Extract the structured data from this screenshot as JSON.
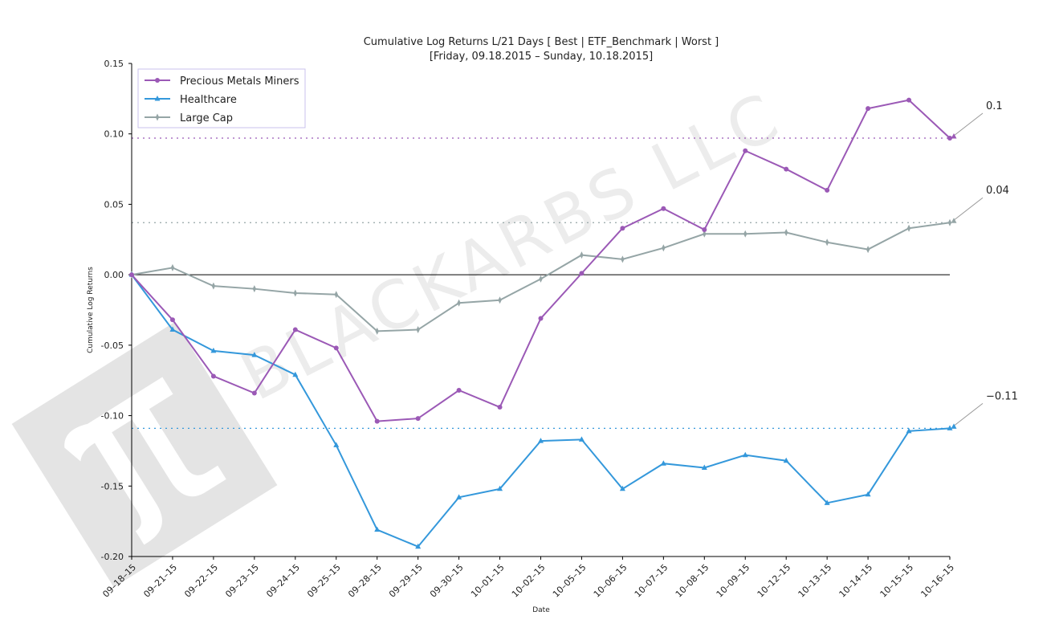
{
  "chart_data": {
    "type": "line",
    "title": "Cumulative Log Returns L/21 Days [ Best | ETF_Benchmark | Worst ]",
    "subtitle": "[Friday, 09.18.2015 – Sunday, 10.18.2015]",
    "xlabel": "Date",
    "ylabel": "Cumulative Log Returns",
    "ylim": [
      -0.2,
      0.15
    ],
    "yticks": [
      "0.15",
      "0.10",
      "0.05",
      "0.00",
      "-0.05",
      "-0.10",
      "-0.15",
      "-0.20"
    ],
    "x": [
      "09–18–15",
      "09–21–15",
      "09–22–15",
      "09–23–15",
      "09–24–15",
      "09–25–15",
      "09–28–15",
      "09–29–15",
      "09–30–15",
      "10–01–15",
      "10–02–15",
      "10–05–15",
      "10–06–15",
      "10–07–15",
      "10–08–15",
      "10–09–15",
      "10–12–15",
      "10–13–15",
      "10–14–15",
      "10–15–15",
      "10–16–15"
    ],
    "series": [
      {
        "name": "Precious Metals Miners",
        "color": "#9b59b6",
        "marker": "circle",
        "values": [
          0.0,
          -0.032,
          -0.072,
          -0.084,
          -0.039,
          -0.052,
          -0.104,
          -0.102,
          -0.082,
          -0.094,
          -0.031,
          0.001,
          0.033,
          0.047,
          0.032,
          0.088,
          0.075,
          0.06,
          0.118,
          0.124,
          0.097
        ]
      },
      {
        "name": "Healthcare",
        "color": "#3498db",
        "marker": "triangle",
        "values": [
          0.0,
          -0.039,
          -0.054,
          -0.057,
          -0.071,
          -0.121,
          -0.181,
          -0.193,
          -0.158,
          -0.152,
          -0.118,
          -0.117,
          -0.152,
          -0.134,
          -0.137,
          -0.128,
          -0.132,
          -0.162,
          -0.156,
          -0.111,
          -0.109
        ]
      },
      {
        "name": "Large Cap",
        "color": "#95a5a6",
        "marker": "thin-diamond",
        "values": [
          0.0,
          0.005,
          -0.008,
          -0.01,
          -0.013,
          -0.014,
          -0.04,
          -0.039,
          -0.02,
          -0.018,
          -0.003,
          0.014,
          0.011,
          0.019,
          0.029,
          0.029,
          0.03,
          0.023,
          0.018,
          0.033,
          0.037
        ]
      }
    ],
    "hlines": [
      {
        "value": 0.097,
        "color": "#9b59b6"
      },
      {
        "value": 0.037,
        "color": "#95a5a6"
      },
      {
        "value": -0.109,
        "color": "#3498db"
      }
    ],
    "annotations": [
      {
        "text": "0.1",
        "series": "Precious Metals Miners"
      },
      {
        "text": "0.04",
        "series": "Large Cap"
      },
      {
        "text": "−0.11",
        "series": "Healthcare"
      }
    ],
    "legend": "top-left",
    "grid": false
  },
  "watermark": {
    "text": "BLACKARBS LLC",
    "logo": "pi-logo",
    "color": "#e4e4e4"
  }
}
